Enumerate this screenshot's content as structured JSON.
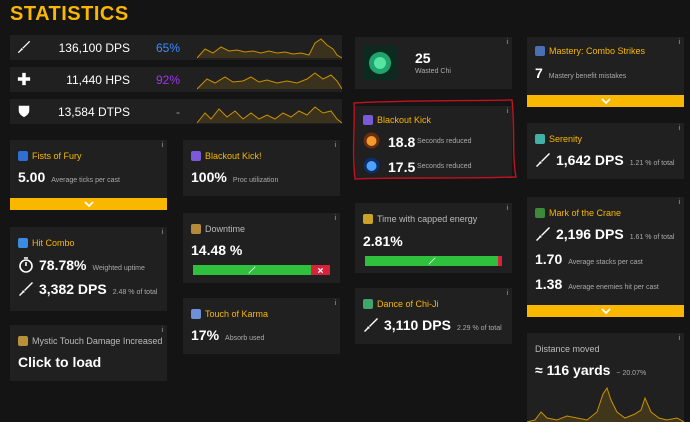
{
  "page": {
    "title": "STATISTICS",
    "info_glyph": "i",
    "expand_icon": "chevron-down-icon",
    "accent_color": "#fab700"
  },
  "summary": [
    {
      "icon": "sword-icon",
      "value": "136,100 DPS",
      "percent": "65%",
      "percent_color": "#3a8bff"
    },
    {
      "icon": "plus-icon",
      "value": "11,440 HPS",
      "percent": "92%",
      "percent_color": "#a335ee"
    },
    {
      "icon": "shield-icon",
      "value": "13,584 DTPS",
      "percent": "-",
      "percent_color": "#999999"
    }
  ],
  "wasted_chi": {
    "value": "25",
    "label": "Wasted Chi"
  },
  "blackout_kick": {
    "title": "Blackout Kick",
    "rows": [
      {
        "value": "18.8",
        "label": "Seconds reduced"
      },
      {
        "value": "17.5",
        "label": "Seconds reduced"
      }
    ]
  },
  "mastery": {
    "title": "Mastery: Combo Strikes",
    "value": "7",
    "label": "Mastery benefit mistakes"
  },
  "fists_of_fury": {
    "title": "Fists of Fury",
    "value": "5.00",
    "label": "Average ticks per cast"
  },
  "blackout_kick_proc": {
    "title": "Blackout Kick!",
    "value": "100%",
    "label": "Proc utilization"
  },
  "serenity": {
    "title": "Serenity",
    "value": "1,642 DPS",
    "label": "1.21 % of total"
  },
  "downtime": {
    "title": "Downtime",
    "value": "14.48 %",
    "active_fraction": 0.86
  },
  "capped_energy": {
    "title": "Time with capped energy",
    "value": "2.81%",
    "uncapped_fraction": 0.972
  },
  "mark_of_the_crane": {
    "title": "Mark of the Crane",
    "dps": "2,196 DPS",
    "dps_label": "1.61 % of total",
    "stacks": "1.70",
    "stacks_label": "Average stacks per cast",
    "enemies": "1.38",
    "enemies_label": "Average enemies hit per cast"
  },
  "hit_combo": {
    "title": "Hit Combo",
    "uptime": "78.78%",
    "uptime_label": "Weighted uptime",
    "dps": "3,382 DPS",
    "dps_label": "2.48 % of total"
  },
  "touch_of_karma": {
    "title": "Touch of Karma",
    "value": "17%",
    "label": "Absorb used"
  },
  "dance_of_chiji": {
    "title": "Dance of Chi-Ji",
    "value": "3,110 DPS",
    "label": "2.29 % of total"
  },
  "mystic_touch": {
    "title": "Mystic Touch Damage Increased",
    "value": "Click to load"
  },
  "distance": {
    "title": "Distance moved",
    "value": "≈ 116 yards",
    "label": "~ 20.07%"
  }
}
